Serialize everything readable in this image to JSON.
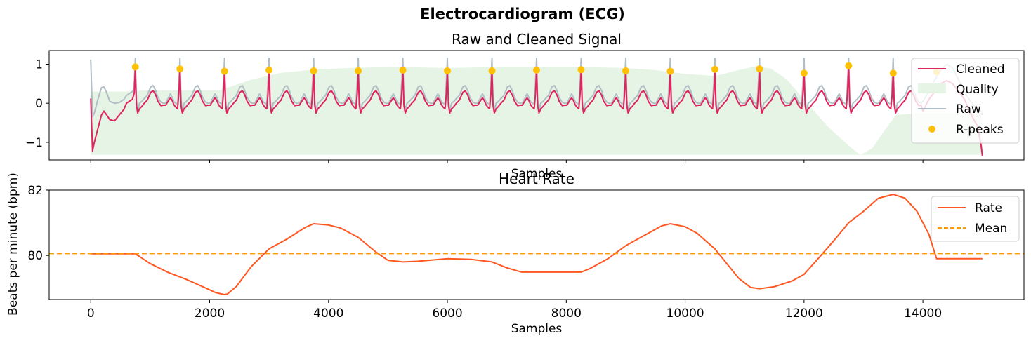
{
  "figure": {
    "suptitle": "Electrocardiogram (ECG)"
  },
  "chart_data": [
    {
      "type": "line",
      "title": "Raw and Cleaned Signal",
      "xlabel": "Samples",
      "ylabel": "",
      "xlim": [
        -700,
        15700
      ],
      "ylim": [
        -1.45,
        1.35
      ],
      "yticks": [
        -1,
        0,
        1
      ],
      "ytick_labels": [
        "−1",
        "0",
        "1"
      ],
      "xticks": [
        0,
        2000,
        4000,
        6000,
        8000,
        10000,
        12000,
        14000
      ],
      "xtick_labels_visible": false,
      "grid": false,
      "legend": {
        "placement": "top-right",
        "entries": [
          {
            "label": "Cleaned",
            "color": "#e0245e",
            "kind": "line"
          },
          {
            "label": "Quality",
            "color": "#e6f4e6",
            "kind": "patch"
          },
          {
            "label": "Raw",
            "color": "#b0bec5",
            "kind": "line"
          },
          {
            "label": "R-peaks",
            "color": "#ffc107",
            "kind": "marker"
          }
        ]
      },
      "beat_template": {
        "offset": [
          -260,
          -240,
          -200,
          -160,
          -130,
          -100,
          -70,
          -40,
          -18,
          0,
          18,
          40,
          70,
          110,
          150,
          200,
          260,
          300,
          340,
          380,
          430,
          470
        ],
        "cleaned": [
          -0.05,
          -0.05,
          0.05,
          0.14,
          0.07,
          -0.04,
          -0.1,
          -0.14,
          0.25,
          0.88,
          -0.05,
          -0.25,
          -0.14,
          -0.08,
          0.0,
          0.08,
          0.28,
          0.32,
          0.22,
          0.05,
          -0.06,
          -0.05
        ],
        "raw": [
          0.0,
          0.0,
          0.12,
          0.24,
          0.15,
          0.04,
          0.0,
          -0.02,
          0.55,
          1.15,
          0.1,
          -0.18,
          0.0,
          0.05,
          0.12,
          0.2,
          0.42,
          0.45,
          0.33,
          0.15,
          0.03,
          0.0
        ]
      },
      "initial_segment": {
        "x": [
          0,
          30,
          60,
          120,
          180,
          220,
          260,
          320,
          400,
          480,
          560,
          600,
          650,
          700,
          720
        ],
        "cleaned": [
          0.12,
          -1.22,
          -1.0,
          -0.65,
          -0.3,
          -0.2,
          -0.28,
          -0.42,
          -0.45,
          -0.3,
          -0.15,
          0.0,
          0.05,
          0.1,
          0.2
        ],
        "raw": [
          1.12,
          -0.35,
          -0.25,
          0.1,
          0.4,
          0.42,
          0.3,
          0.05,
          0.0,
          0.02,
          0.1,
          0.2,
          0.25,
          0.3,
          0.35
        ]
      },
      "final_segment": {
        "x": [
          13540,
          13700,
          13800,
          13900,
          14000,
          14100,
          14200,
          14300,
          14400,
          14500,
          14600,
          14700,
          14780,
          14850,
          14920,
          14980,
          15000
        ],
        "cleaned": [
          -0.1,
          -0.3,
          -0.5,
          -0.45,
          -0.2,
          0.1,
          0.3,
          0.5,
          0.58,
          0.5,
          0.3,
          0.1,
          -0.2,
          -0.4,
          -0.6,
          -1.1,
          -1.35
        ],
        "raw": [
          0.1,
          -0.1,
          -0.3,
          -0.25,
          0.05,
          0.3,
          0.6,
          0.85,
          1.0,
          0.9,
          0.6,
          0.3,
          0.1,
          -0.05,
          -0.1,
          -0.2,
          -0.3
        ]
      },
      "r_peaks": {
        "x": [
          750,
          1500,
          2250,
          3000,
          3750,
          4500,
          5250,
          6000,
          6750,
          7500,
          8250,
          9000,
          9750,
          10500,
          11250,
          12000,
          12750,
          13500,
          14230
        ],
        "y": [
          0.93,
          0.88,
          0.82,
          0.85,
          0.83,
          0.83,
          0.85,
          0.83,
          0.83,
          0.85,
          0.86,
          0.83,
          0.82,
          0.87,
          0.88,
          0.77,
          0.96,
          0.77,
          0.8
        ]
      },
      "quality": {
        "baseline": -1.32,
        "x": [
          0,
          600,
          900,
          2150,
          2300,
          2700,
          3200,
          3800,
          4500,
          5200,
          6000,
          6800,
          7500,
          8300,
          9000,
          9500,
          10000,
          10500,
          10900,
          11200,
          11450,
          11700,
          12000,
          12400,
          12800,
          12950,
          13150,
          13350,
          13550,
          14000,
          15000
        ],
        "y": [
          0.3,
          0.3,
          0.33,
          0.33,
          0.4,
          0.6,
          0.78,
          0.87,
          0.91,
          0.93,
          0.9,
          0.93,
          0.93,
          0.93,
          0.9,
          0.85,
          0.75,
          0.7,
          0.85,
          0.95,
          0.88,
          0.62,
          0.1,
          -0.6,
          -1.15,
          -1.32,
          -1.15,
          -0.7,
          -0.3,
          -0.25,
          -0.25
        ]
      }
    },
    {
      "type": "line",
      "title": "Heart Rate",
      "xlabel": "Samples",
      "ylabel": "Beats per minute (bpm)",
      "xlim": [
        -700,
        15700
      ],
      "ylim": [
        78.65,
        82.0
      ],
      "yticks": [
        80,
        82
      ],
      "xticks": [
        0,
        2000,
        4000,
        6000,
        8000,
        10000,
        12000,
        14000
      ],
      "grid": false,
      "legend": {
        "placement": "top-right",
        "entries": [
          {
            "label": "Rate",
            "color": "#ff5722",
            "kind": "line"
          },
          {
            "label": "Mean",
            "color": "#ff9800",
            "kind": "dashed"
          }
        ]
      },
      "rate": {
        "x": [
          0,
          750,
          1000,
          1300,
          1600,
          1900,
          2100,
          2250,
          2300,
          2450,
          2700,
          3000,
          3300,
          3600,
          3750,
          4000,
          4200,
          4500,
          4800,
          5000,
          5250,
          5500,
          6000,
          6400,
          6750,
          7000,
          7250,
          7500,
          8250,
          8400,
          8700,
          9000,
          9300,
          9600,
          9750,
          10000,
          10200,
          10500,
          10700,
          10900,
          11100,
          11250,
          11500,
          11800,
          12000,
          12250,
          12500,
          12750,
          13000,
          13250,
          13500,
          13700,
          13900,
          14100,
          14230,
          15000
        ],
        "y": [
          80.05,
          80.05,
          79.75,
          79.48,
          79.27,
          79.03,
          78.86,
          78.8,
          78.82,
          79.05,
          79.66,
          80.2,
          80.5,
          80.85,
          80.97,
          80.93,
          80.84,
          80.55,
          80.1,
          79.85,
          79.8,
          79.82,
          79.9,
          79.88,
          79.8,
          79.62,
          79.49,
          79.49,
          79.49,
          79.6,
          79.9,
          80.3,
          80.6,
          80.9,
          80.97,
          80.88,
          80.68,
          80.2,
          79.75,
          79.3,
          79.02,
          78.98,
          79.04,
          79.22,
          79.42,
          79.93,
          80.45,
          81.0,
          81.35,
          81.75,
          81.87,
          81.75,
          81.35,
          80.65,
          79.9,
          79.9
        ]
      },
      "mean": 80.06
    }
  ]
}
